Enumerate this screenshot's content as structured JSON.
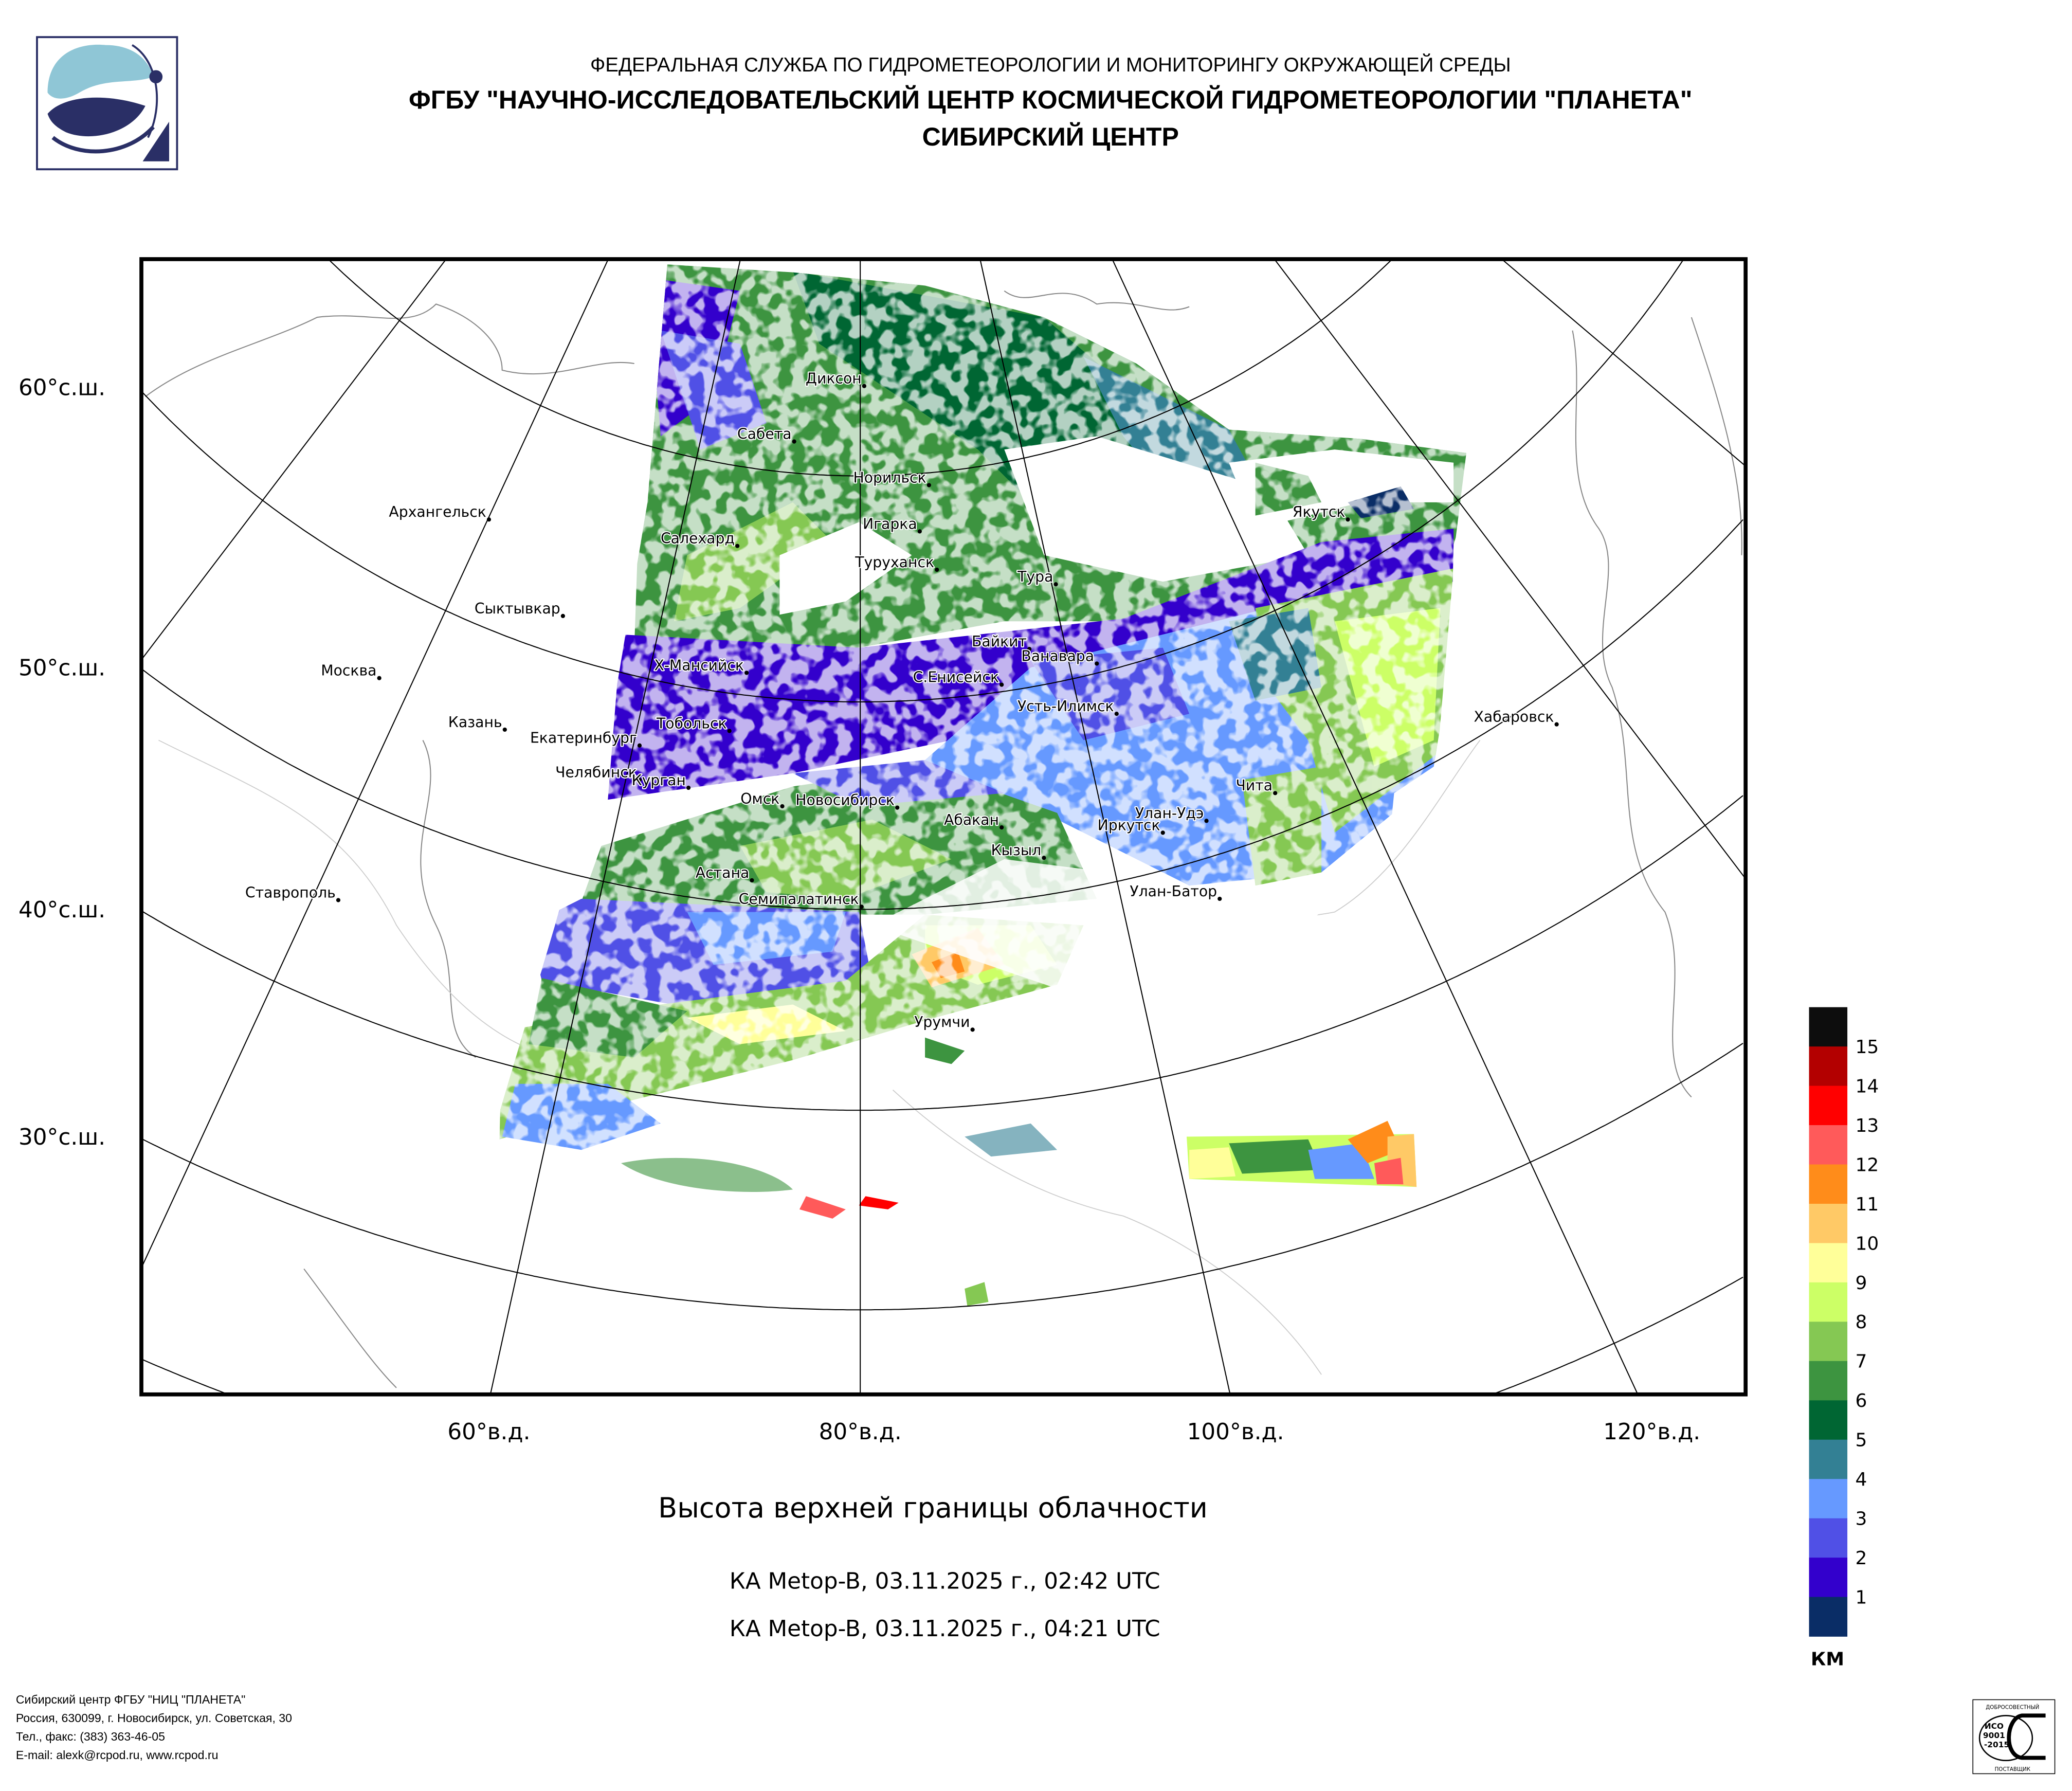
{
  "header": {
    "line1": "ФЕДЕРАЛЬНАЯ СЛУЖБА ПО ГИДРОМЕТЕОРОЛОГИИ И МОНИТОРИНГУ ОКРУЖАЮЩЕЙ СРЕДЫ",
    "line2": "ФГБУ \"НАУЧНО-ИССЛЕДОВАТЕЛЬСКИЙ ЦЕНТР КОСМИЧЕСКОЙ ГИДРОМЕТЕОРОЛОГИИ \"ПЛАНЕТА\"",
    "line3": "СИБИРСКИЙ ЦЕНТР"
  },
  "chart_data": {
    "type": "heatmap",
    "title": "Высота верхней границы облачности",
    "subtitles": [
      "КА Metop-B, 03.11.2025 г., 02:42 UTC",
      "КА Metop-B, 03.11.2025 г., 04:21 UTC"
    ],
    "lat_labels": [
      "60°с.ш.",
      "50°с.ш.",
      "40°с.ш.",
      "30°с.ш."
    ],
    "lon_labels": [
      "60°в.д.",
      "80°в.д.",
      "100°в.д.",
      "120°в.д."
    ],
    "legend": {
      "unit": "КМ",
      "ticks": [
        "15",
        "14",
        "13",
        "12",
        "11",
        "10",
        "9",
        "8",
        "7",
        "6",
        "5",
        "4",
        "3",
        "2",
        "1"
      ],
      "colors": [
        "#0d0d0d",
        "#b30000",
        "#ff0000",
        "#ff5a5a",
        "#ff8c1a",
        "#ffc966",
        "#ffff99",
        "#ccff66",
        "#85c853",
        "#3d9440",
        "#006633",
        "#338094",
        "#6699ff",
        "#5050e6",
        "#3300cc",
        "#0a2d66"
      ]
    },
    "cities": [
      "Диксон",
      "Сабета",
      "Норильск",
      "Архангельск",
      "Салехард",
      "Игарка",
      "Туруханск",
      "Тура",
      "Сыктывкар",
      "Байкит",
      "Ванавара",
      "Х-Мансийск",
      "Москва",
      "С.Енисейск",
      "Усть-Илимск",
      "Хабаровск",
      "Казань",
      "Тобольск",
      "Екатеринбург",
      "Челябинск",
      "Чита",
      "Курган",
      "Омск",
      "Новосибирск",
      "Улан-Удэ",
      "Абакан",
      "Иркутск",
      "Кызыл",
      "Астана",
      "Семипалатинск",
      "Улан-Батор",
      "Ставрополь",
      "Урумчи",
      "Якутск"
    ]
  },
  "footer": {
    "lines": [
      "Сибирский центр ФГБУ \"НИЦ \"ПЛАНЕТА\"",
      "Россия, 630099, г. Новосибирск, ул. Советская, 30",
      "Тел., факс: (383) 363-46-05",
      "E-mail: alexk@rcpod.ru, www.rcpod.ru"
    ]
  },
  "iso_badge": {
    "top": "ДОБРОСОВЕСТНЫЙ",
    "mid1": "ИСО",
    "mid2": "9001",
    "mid3": "-2015",
    "bottom": "ПОСТАВЩИК"
  }
}
